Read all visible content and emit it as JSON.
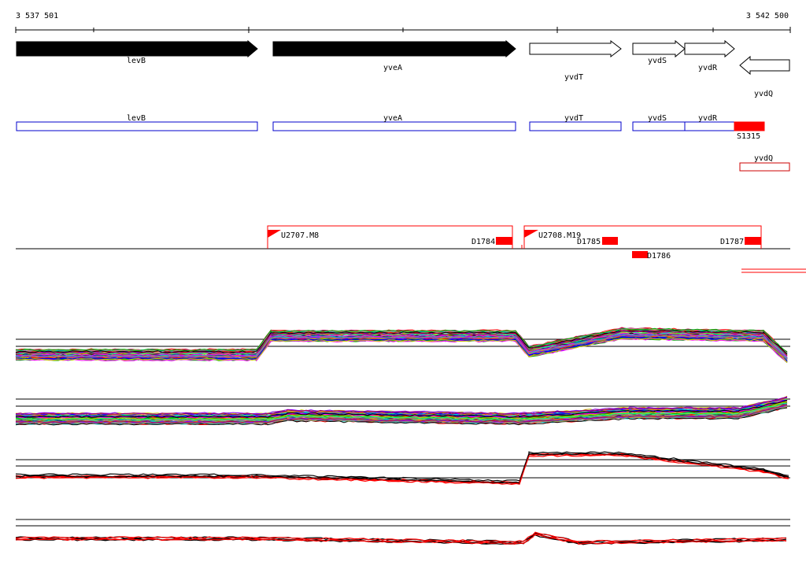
{
  "coordinates": {
    "start_label": "3 537 501",
    "end_label": "3 542 500"
  },
  "genes": [
    {
      "name": "levB",
      "strand": "+",
      "color": "#000000"
    },
    {
      "name": "yveA",
      "strand": "+",
      "color": "#000000"
    },
    {
      "name": "yvdT",
      "strand": "+",
      "color": "#ffffff"
    },
    {
      "name": "yvdS",
      "strand": "+",
      "color": "#ffffff"
    },
    {
      "name": "yvdR",
      "strand": "+",
      "color": "#ffffff"
    },
    {
      "name": "yvdQ",
      "strand": "-",
      "color": "#ffffff"
    }
  ],
  "annotation_boxes": [
    {
      "name": "levB",
      "color": "#0000cc"
    },
    {
      "name": "yveA",
      "color": "#0000cc"
    },
    {
      "name": "yvdT",
      "color": "#0000cc"
    },
    {
      "name": "yvdS",
      "color": "#0000cc"
    },
    {
      "name": "yvdR",
      "color": "#0000cc"
    },
    {
      "name": "yvdQ",
      "color": "#cc0000"
    }
  ],
  "features": {
    "s_label": "S1315",
    "transcripts": [
      {
        "name": "U2707.M8"
      },
      {
        "name": "U2708.M19"
      }
    ],
    "downshifts": [
      {
        "name": "D1784"
      },
      {
        "name": "D1785"
      },
      {
        "name": "D1786"
      },
      {
        "name": "D1787"
      }
    ]
  },
  "colors": {
    "feature_red": "#ff0000",
    "box_blue": "#0000cc"
  }
}
